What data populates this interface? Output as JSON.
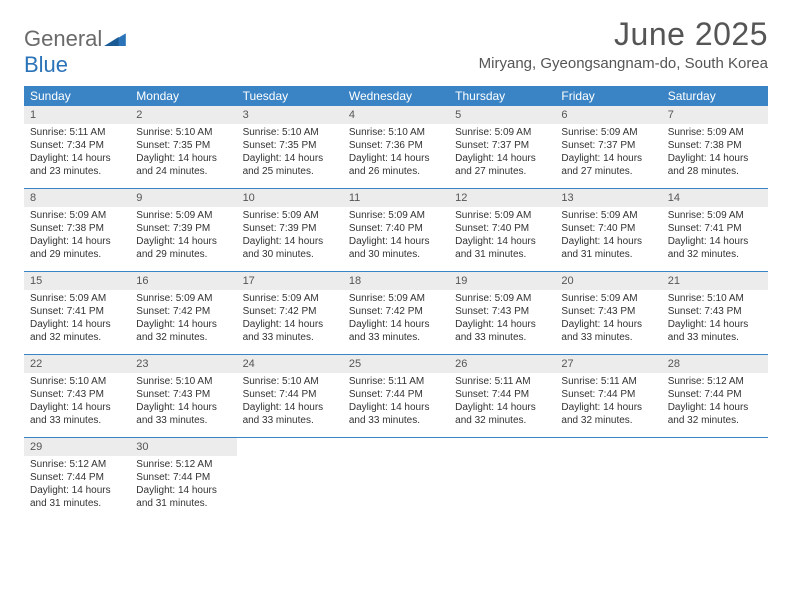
{
  "logo": {
    "text1": "General",
    "text2": "Blue"
  },
  "title": "June 2025",
  "location": "Miryang, Gyeongsangnam-do, South Korea",
  "colors": {
    "header_bg": "#3a84c5",
    "header_text": "#ffffff",
    "daynum_bg": "#ececec",
    "border": "#3a84c5",
    "text": "#333333",
    "title_text": "#555555"
  },
  "weekdays": [
    "Sunday",
    "Monday",
    "Tuesday",
    "Wednesday",
    "Thursday",
    "Friday",
    "Saturday"
  ],
  "weeks": [
    [
      {
        "n": "1",
        "sr": "Sunrise: 5:11 AM",
        "ss": "Sunset: 7:34 PM",
        "d1": "Daylight: 14 hours",
        "d2": "and 23 minutes."
      },
      {
        "n": "2",
        "sr": "Sunrise: 5:10 AM",
        "ss": "Sunset: 7:35 PM",
        "d1": "Daylight: 14 hours",
        "d2": "and 24 minutes."
      },
      {
        "n": "3",
        "sr": "Sunrise: 5:10 AM",
        "ss": "Sunset: 7:35 PM",
        "d1": "Daylight: 14 hours",
        "d2": "and 25 minutes."
      },
      {
        "n": "4",
        "sr": "Sunrise: 5:10 AM",
        "ss": "Sunset: 7:36 PM",
        "d1": "Daylight: 14 hours",
        "d2": "and 26 minutes."
      },
      {
        "n": "5",
        "sr": "Sunrise: 5:09 AM",
        "ss": "Sunset: 7:37 PM",
        "d1": "Daylight: 14 hours",
        "d2": "and 27 minutes."
      },
      {
        "n": "6",
        "sr": "Sunrise: 5:09 AM",
        "ss": "Sunset: 7:37 PM",
        "d1": "Daylight: 14 hours",
        "d2": "and 27 minutes."
      },
      {
        "n": "7",
        "sr": "Sunrise: 5:09 AM",
        "ss": "Sunset: 7:38 PM",
        "d1": "Daylight: 14 hours",
        "d2": "and 28 minutes."
      }
    ],
    [
      {
        "n": "8",
        "sr": "Sunrise: 5:09 AM",
        "ss": "Sunset: 7:38 PM",
        "d1": "Daylight: 14 hours",
        "d2": "and 29 minutes."
      },
      {
        "n": "9",
        "sr": "Sunrise: 5:09 AM",
        "ss": "Sunset: 7:39 PM",
        "d1": "Daylight: 14 hours",
        "d2": "and 29 minutes."
      },
      {
        "n": "10",
        "sr": "Sunrise: 5:09 AM",
        "ss": "Sunset: 7:39 PM",
        "d1": "Daylight: 14 hours",
        "d2": "and 30 minutes."
      },
      {
        "n": "11",
        "sr": "Sunrise: 5:09 AM",
        "ss": "Sunset: 7:40 PM",
        "d1": "Daylight: 14 hours",
        "d2": "and 30 minutes."
      },
      {
        "n": "12",
        "sr": "Sunrise: 5:09 AM",
        "ss": "Sunset: 7:40 PM",
        "d1": "Daylight: 14 hours",
        "d2": "and 31 minutes."
      },
      {
        "n": "13",
        "sr": "Sunrise: 5:09 AM",
        "ss": "Sunset: 7:40 PM",
        "d1": "Daylight: 14 hours",
        "d2": "and 31 minutes."
      },
      {
        "n": "14",
        "sr": "Sunrise: 5:09 AM",
        "ss": "Sunset: 7:41 PM",
        "d1": "Daylight: 14 hours",
        "d2": "and 32 minutes."
      }
    ],
    [
      {
        "n": "15",
        "sr": "Sunrise: 5:09 AM",
        "ss": "Sunset: 7:41 PM",
        "d1": "Daylight: 14 hours",
        "d2": "and 32 minutes."
      },
      {
        "n": "16",
        "sr": "Sunrise: 5:09 AM",
        "ss": "Sunset: 7:42 PM",
        "d1": "Daylight: 14 hours",
        "d2": "and 32 minutes."
      },
      {
        "n": "17",
        "sr": "Sunrise: 5:09 AM",
        "ss": "Sunset: 7:42 PM",
        "d1": "Daylight: 14 hours",
        "d2": "and 33 minutes."
      },
      {
        "n": "18",
        "sr": "Sunrise: 5:09 AM",
        "ss": "Sunset: 7:42 PM",
        "d1": "Daylight: 14 hours",
        "d2": "and 33 minutes."
      },
      {
        "n": "19",
        "sr": "Sunrise: 5:09 AM",
        "ss": "Sunset: 7:43 PM",
        "d1": "Daylight: 14 hours",
        "d2": "and 33 minutes."
      },
      {
        "n": "20",
        "sr": "Sunrise: 5:09 AM",
        "ss": "Sunset: 7:43 PM",
        "d1": "Daylight: 14 hours",
        "d2": "and 33 minutes."
      },
      {
        "n": "21",
        "sr": "Sunrise: 5:10 AM",
        "ss": "Sunset: 7:43 PM",
        "d1": "Daylight: 14 hours",
        "d2": "and 33 minutes."
      }
    ],
    [
      {
        "n": "22",
        "sr": "Sunrise: 5:10 AM",
        "ss": "Sunset: 7:43 PM",
        "d1": "Daylight: 14 hours",
        "d2": "and 33 minutes."
      },
      {
        "n": "23",
        "sr": "Sunrise: 5:10 AM",
        "ss": "Sunset: 7:43 PM",
        "d1": "Daylight: 14 hours",
        "d2": "and 33 minutes."
      },
      {
        "n": "24",
        "sr": "Sunrise: 5:10 AM",
        "ss": "Sunset: 7:44 PM",
        "d1": "Daylight: 14 hours",
        "d2": "and 33 minutes."
      },
      {
        "n": "25",
        "sr": "Sunrise: 5:11 AM",
        "ss": "Sunset: 7:44 PM",
        "d1": "Daylight: 14 hours",
        "d2": "and 33 minutes."
      },
      {
        "n": "26",
        "sr": "Sunrise: 5:11 AM",
        "ss": "Sunset: 7:44 PM",
        "d1": "Daylight: 14 hours",
        "d2": "and 32 minutes."
      },
      {
        "n": "27",
        "sr": "Sunrise: 5:11 AM",
        "ss": "Sunset: 7:44 PM",
        "d1": "Daylight: 14 hours",
        "d2": "and 32 minutes."
      },
      {
        "n": "28",
        "sr": "Sunrise: 5:12 AM",
        "ss": "Sunset: 7:44 PM",
        "d1": "Daylight: 14 hours",
        "d2": "and 32 minutes."
      }
    ],
    [
      {
        "n": "29",
        "sr": "Sunrise: 5:12 AM",
        "ss": "Sunset: 7:44 PM",
        "d1": "Daylight: 14 hours",
        "d2": "and 31 minutes."
      },
      {
        "n": "30",
        "sr": "Sunrise: 5:12 AM",
        "ss": "Sunset: 7:44 PM",
        "d1": "Daylight: 14 hours",
        "d2": "and 31 minutes."
      },
      null,
      null,
      null,
      null,
      null
    ]
  ]
}
